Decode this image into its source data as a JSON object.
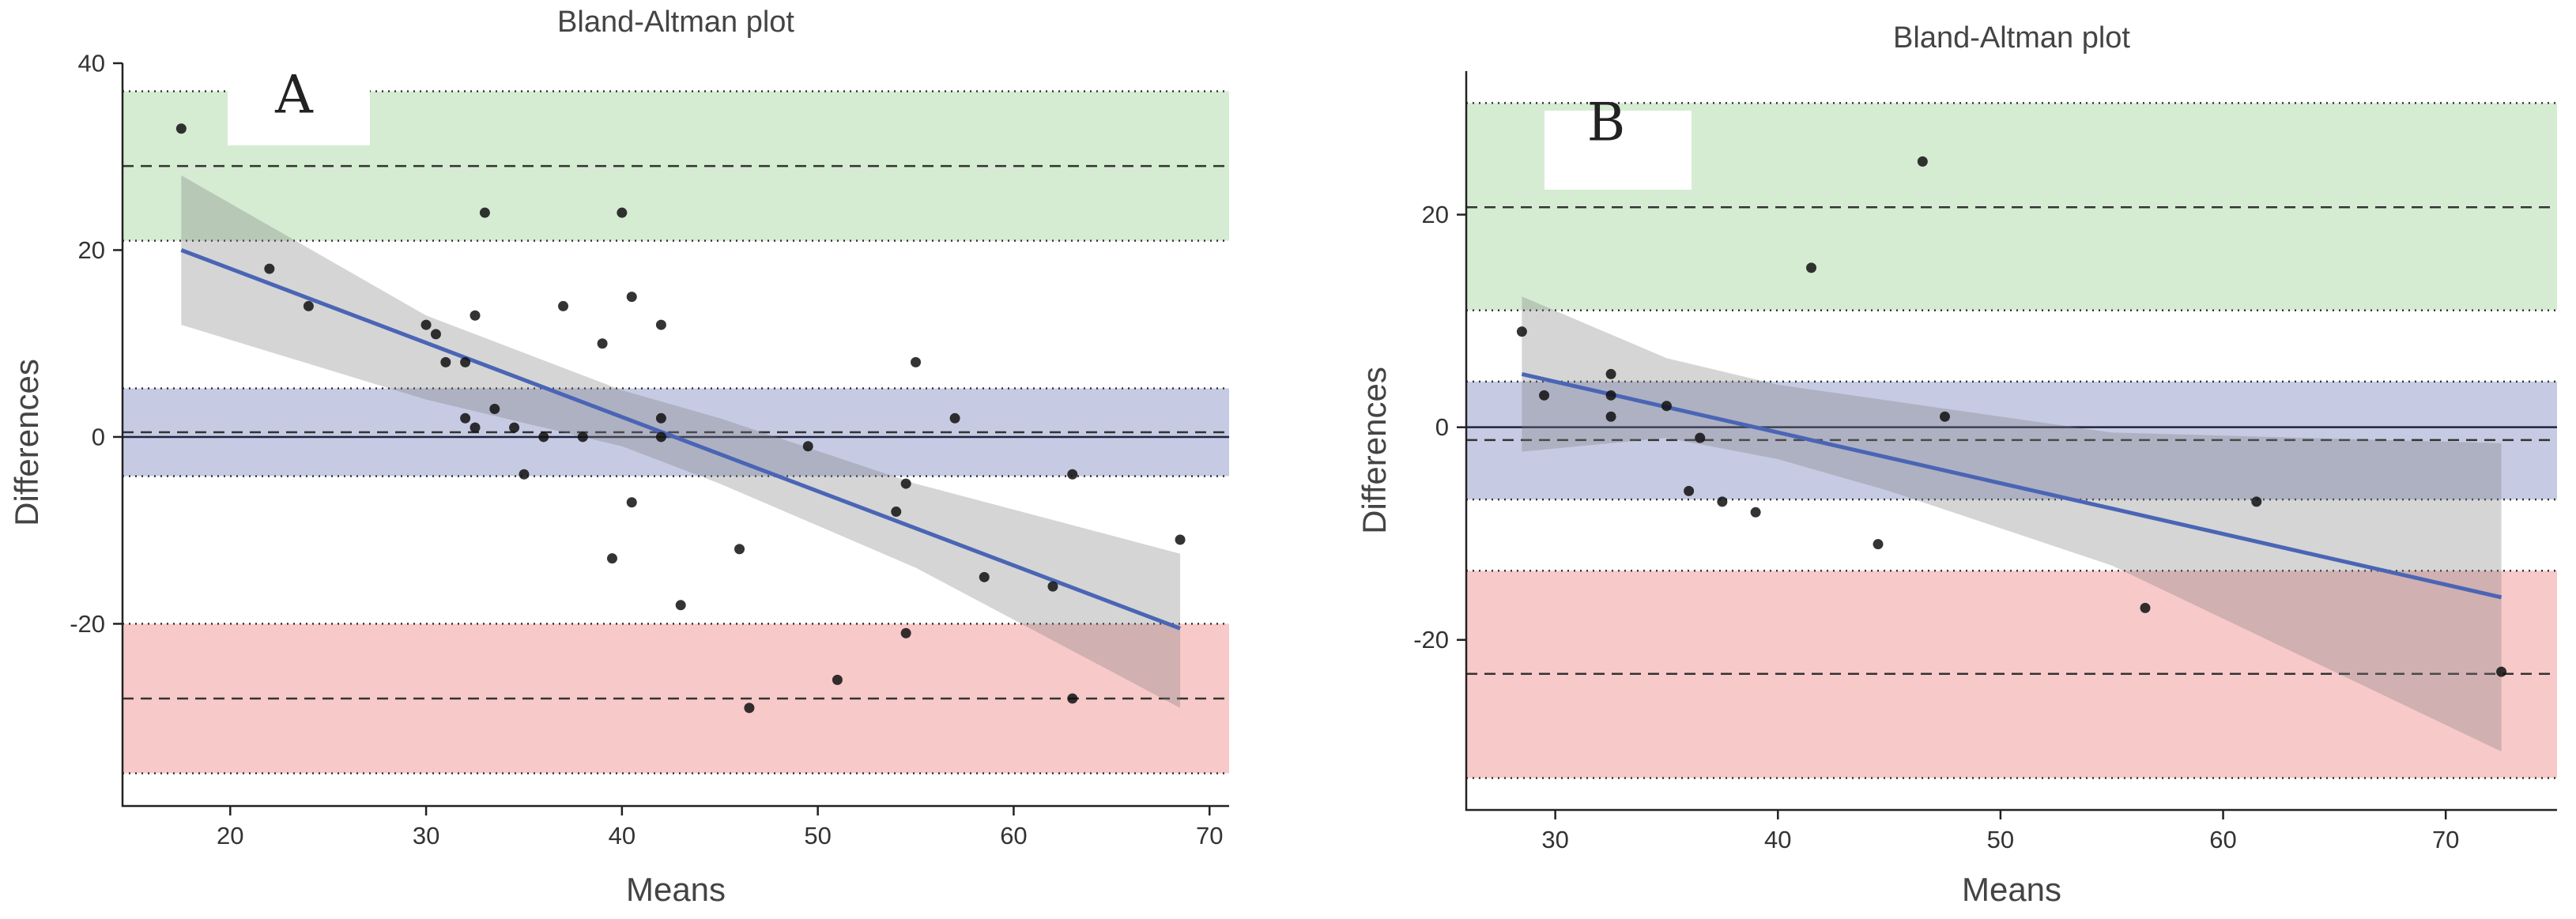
{
  "chart_data": [
    {
      "type": "scatter",
      "panel_label": "A",
      "title": "Bland-Altman plot",
      "xlabel": "Means",
      "ylabel": "Differences",
      "xlim": [
        14.5,
        71
      ],
      "ylim": [
        -39.5,
        40
      ],
      "xticks": [
        20,
        30,
        40,
        50,
        60,
        70
      ],
      "yticks": [
        -20,
        0,
        20,
        40
      ],
      "ytick_labels": [
        "-20",
        "0",
        "20",
        "40"
      ],
      "bands": [
        {
          "name": "upper-loa-ci",
          "ymin": 21,
          "ymax": 37,
          "center": 29,
          "color": "#d5ecd2"
        },
        {
          "name": "bias-ci",
          "ymin": -4.2,
          "ymax": 5.2,
          "center": 0.5,
          "color": "#c6cbe3"
        },
        {
          "name": "lower-loa-ci",
          "ymin": -36,
          "ymax": -20,
          "center": -28,
          "color": "#f8c9c9"
        }
      ],
      "zero_line": 0,
      "regression": {
        "x": [
          17.5,
          68.5
        ],
        "y": [
          20,
          -20.5
        ],
        "color": "#4a65b5"
      },
      "ci_band": {
        "x": [
          17.5,
          30,
          40,
          45,
          55,
          68.5
        ],
        "upper": [
          28,
          13,
          5,
          2,
          -5,
          -12.5
        ],
        "lower": [
          12,
          4,
          -1,
          -5,
          -14,
          -29
        ]
      },
      "points": {
        "x": [
          17.5,
          22,
          24,
          30,
          30.5,
          31,
          32,
          32.5,
          33,
          32,
          32.5,
          33.5,
          34.5,
          35,
          36,
          37,
          38,
          39,
          39.5,
          40,
          40.5,
          40.5,
          42,
          42,
          42,
          43,
          46,
          46.5,
          49.5,
          51,
          54,
          54.5,
          54.5,
          55,
          57,
          58.5,
          62,
          63,
          63,
          68.5
        ],
        "y": [
          33,
          18,
          14,
          12,
          11,
          8,
          8,
          13,
          24,
          2,
          1,
          3,
          1,
          -4,
          0,
          14,
          0,
          10,
          -13,
          24,
          15,
          -7,
          12,
          2,
          0,
          -18,
          -12,
          -29,
          -1,
          -26,
          -8,
          -5,
          -21,
          8,
          2,
          -15,
          -16,
          -4,
          -28,
          -11
        ]
      }
    },
    {
      "type": "scatter",
      "panel_label": "B",
      "title": "Bland-Altman plot",
      "xlabel": "Means",
      "ylabel": "Differences",
      "xlim": [
        26,
        75
      ],
      "ylim": [
        -36,
        33.5
      ],
      "xticks": [
        30,
        40,
        50,
        60,
        70
      ],
      "yticks": [
        -20,
        0,
        20
      ],
      "ytick_labels": [
        "-20",
        "0",
        "20"
      ],
      "bands": [
        {
          "name": "upper-loa-ci",
          "ymin": 11,
          "ymax": 30.5,
          "center": 20.7,
          "color": "#d5ecd2"
        },
        {
          "name": "bias-ci",
          "ymin": -6.8,
          "ymax": 4.3,
          "center": -1.2,
          "color": "#c6cbe3"
        },
        {
          "name": "lower-loa-ci",
          "ymin": -33,
          "ymax": -13.5,
          "center": -23.2,
          "color": "#f8c9c9"
        }
      ],
      "zero_line": 0,
      "regression": {
        "x": [
          28.5,
          72.5
        ],
        "y": [
          5,
          -16
        ],
        "color": "#4a65b5"
      },
      "ci_band": {
        "x": [
          28.5,
          35,
          40,
          45,
          55,
          72.5
        ],
        "upper": [
          12.3,
          6.5,
          4,
          2.5,
          -0.5,
          -1.5
        ],
        "lower": [
          -2.3,
          -1,
          -3,
          -6,
          -13,
          -30.5
        ]
      },
      "points": {
        "x": [
          28.5,
          29.5,
          32.5,
          32.5,
          32.5,
          35,
          36,
          36.5,
          37.5,
          39,
          41.5,
          44.5,
          46.5,
          47.5,
          56.5,
          61.5,
          72.5
        ],
        "y": [
          9,
          3,
          5,
          3,
          1,
          2,
          -6,
          -1,
          -7,
          -8,
          15,
          -11,
          25,
          1,
          -17,
          -7,
          -23
        ]
      }
    }
  ]
}
